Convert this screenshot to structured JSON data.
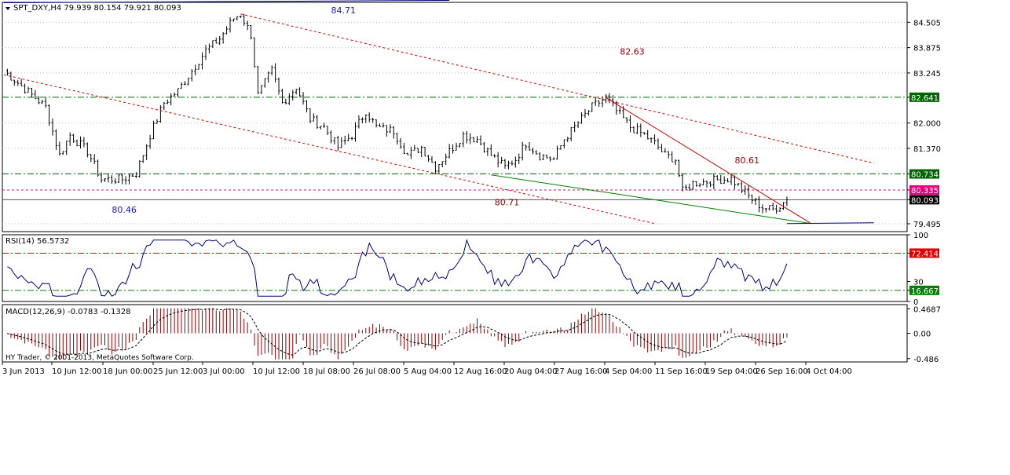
{
  "header": {
    "symbol_line": "SPT_DXY,H4  79.939 80.154 79.921 80.093",
    "copyright": "HY Trader, © 2001-2013, MetaQuotes Software Corp."
  },
  "colors": {
    "background": "#ffffff",
    "grid": "#c0c0c0",
    "axis": "#000000",
    "candle": "#000000",
    "level_green": "#006400",
    "level_pink": "#e8007a",
    "channel_red": "#cc0000",
    "upper_trend": "#000080",
    "rsi_line": "#000080",
    "rsi_high": "#e00000",
    "rsi_low": "#008000",
    "macd_hist": "#8b0000",
    "macd_signal": "#000000",
    "note_blue": "#1a1ab0",
    "note_red": "#8b0000"
  },
  "chart_data": [
    {
      "type": "candlestick",
      "name": "SPT_DXY H4",
      "ylim": [
        79.3,
        85.0
      ],
      "yticks": [
        79.495,
        80.093,
        80.335,
        80.734,
        81.37,
        82.0,
        82.641,
        83.245,
        83.875,
        84.505
      ],
      "xticks": [
        "3 Jun 2013",
        "10 Jun 12:00",
        "18 Jun 00:00",
        "25 Jun 12:00",
        "3 Jul 00:00",
        "10 Jul 12:00",
        "18 Jul 08:00",
        "26 Jul 08:00",
        "5 Aug 04:00",
        "12 Aug 16:00",
        "20 Aug 04:00",
        "27 Aug 16:00",
        "4 Sep 04:00",
        "11 Sep 16:00",
        "19 Sep 04:00",
        "26 Sep 16:00",
        "4 Oct 04:00"
      ],
      "anchors": [
        {
          "i": 0,
          "v": 83.3
        },
        {
          "i": 8,
          "v": 82.7
        },
        {
          "i": 12,
          "v": 82.4
        },
        {
          "i": 16,
          "v": 81.2
        },
        {
          "i": 19,
          "v": 81.7
        },
        {
          "i": 24,
          "v": 81.3
        },
        {
          "i": 28,
          "v": 80.6
        },
        {
          "i": 34,
          "v": 80.6
        },
        {
          "i": 38,
          "v": 80.75
        },
        {
          "i": 42,
          "v": 81.7
        },
        {
          "i": 46,
          "v": 82.5
        },
        {
          "i": 50,
          "v": 82.8
        },
        {
          "i": 54,
          "v": 83.3
        },
        {
          "i": 58,
          "v": 83.8
        },
        {
          "i": 62,
          "v": 84.1
        },
        {
          "i": 66,
          "v": 84.6
        },
        {
          "i": 68,
          "v": 84.71
        },
        {
          "i": 71,
          "v": 84.2
        },
        {
          "i": 73,
          "v": 82.7
        },
        {
          "i": 77,
          "v": 83.3
        },
        {
          "i": 80,
          "v": 82.5
        },
        {
          "i": 84,
          "v": 82.9
        },
        {
          "i": 88,
          "v": 82.1
        },
        {
          "i": 92,
          "v": 81.9
        },
        {
          "i": 96,
          "v": 81.4
        },
        {
          "i": 100,
          "v": 81.7
        },
        {
          "i": 104,
          "v": 82.3
        },
        {
          "i": 107,
          "v": 81.9
        },
        {
          "i": 112,
          "v": 81.8
        },
        {
          "i": 116,
          "v": 81.2
        },
        {
          "i": 120,
          "v": 81.4
        },
        {
          "i": 124,
          "v": 80.9
        },
        {
          "i": 128,
          "v": 81.3
        },
        {
          "i": 132,
          "v": 81.7
        },
        {
          "i": 136,
          "v": 81.6
        },
        {
          "i": 140,
          "v": 81.2
        },
        {
          "i": 144,
          "v": 80.9
        },
        {
          "i": 147,
          "v": 81.1
        },
        {
          "i": 150,
          "v": 81.5
        },
        {
          "i": 154,
          "v": 81.2
        },
        {
          "i": 158,
          "v": 81.1
        },
        {
          "i": 161,
          "v": 81.6
        },
        {
          "i": 165,
          "v": 82.0
        },
        {
          "i": 169,
          "v": 82.4
        },
        {
          "i": 173,
          "v": 82.63
        },
        {
          "i": 176,
          "v": 82.3
        },
        {
          "i": 180,
          "v": 81.9
        },
        {
          "i": 184,
          "v": 81.7
        },
        {
          "i": 187,
          "v": 81.5
        },
        {
          "i": 190,
          "v": 81.2
        },
        {
          "i": 193,
          "v": 81.1
        },
        {
          "i": 195,
          "v": 80.3
        },
        {
          "i": 198,
          "v": 80.5
        },
        {
          "i": 202,
          "v": 80.55
        },
        {
          "i": 206,
          "v": 80.6
        },
        {
          "i": 209,
          "v": 80.61
        },
        {
          "i": 212,
          "v": 80.35
        },
        {
          "i": 215,
          "v": 80.1
        },
        {
          "i": 218,
          "v": 79.9
        },
        {
          "i": 221,
          "v": 79.85
        },
        {
          "i": 223,
          "v": 79.95
        },
        {
          "i": 225,
          "v": 80.093
        }
      ],
      "levels": [
        {
          "value": 82.641,
          "color": "#006400",
          "style": "dashdot"
        },
        {
          "value": 80.734,
          "color": "#006400",
          "style": "dashdot"
        },
        {
          "value": 80.335,
          "color": "#e8007a",
          "style": "dashed"
        },
        {
          "value": 80.093,
          "color": "#555555",
          "style": "solid"
        }
      ],
      "trendlines": [
        {
          "from": [
            0,
            83.2
          ],
          "to": [
            187,
            79.5
          ],
          "color": "#cc0000",
          "style": "dotted"
        },
        {
          "from": [
            68,
            84.71
          ],
          "to": [
            250,
            81.0
          ],
          "color": "#cc0000",
          "style": "dotted"
        },
        {
          "from": [
            173,
            82.63
          ],
          "to": [
            232,
            79.5
          ],
          "color": "#cc0000",
          "style": "solid"
        },
        {
          "from": [
            140,
            80.71
          ],
          "to": [
            232,
            79.5
          ],
          "color": "#008000",
          "style": "solid"
        },
        {
          "from": [
            0,
            84.99
          ],
          "to": [
            128,
            85.05
          ],
          "color": "#000080",
          "style": "solid"
        },
        {
          "from": [
            225,
            79.5
          ],
          "to": [
            250,
            79.52
          ],
          "color": "#000080",
          "style": "solid"
        }
      ],
      "annotations": [
        {
          "text": "84.71",
          "i": 94,
          "v": 84.73,
          "color": "#1a1ab0"
        },
        {
          "text": "82.63",
          "i": 177,
          "v": 83.7,
          "color": "#8b0000"
        },
        {
          "text": "80.61",
          "i": 210,
          "v": 81.0,
          "color": "#8b0000"
        },
        {
          "text": "80.71",
          "i": 141,
          "v": 79.95,
          "color": "#8b0000"
        },
        {
          "text": "80.46",
          "i": 31,
          "v": 79.77,
          "color": "#1a1ab0"
        }
      ]
    },
    {
      "type": "line",
      "name": "RSI(14)",
      "label": "RSI(14) 56.5732",
      "ylim": [
        0,
        100
      ],
      "yticks": [
        100,
        72.414,
        30,
        16.667,
        0
      ],
      "levels": [
        {
          "value": 72.414,
          "color": "#e00000"
        },
        {
          "value": 16.667,
          "color": "#008000"
        }
      ],
      "last": 56.5732
    },
    {
      "type": "bar",
      "name": "MACD(12,26,9)",
      "label": "MACD(12,26,9) -0.0783 -0.1328",
      "ylim": [
        -0.55,
        0.55
      ],
      "yticks": [
        0.4687,
        0.0,
        -0.486
      ],
      "last_main": -0.0783,
      "last_signal": -0.1328
    }
  ]
}
